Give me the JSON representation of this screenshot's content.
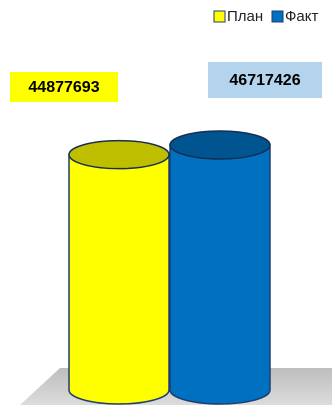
{
  "chart_data": {
    "type": "cylinder",
    "categories": [
      null
    ],
    "series": [
      {
        "name": "План",
        "color": "#ffff00",
        "label_color": "#ffff00",
        "values": [
          44877693
        ]
      },
      {
        "name": "Факт",
        "color": "#0070c0",
        "label_color": "#b4d3ec",
        "values": [
          46717426
        ]
      }
    ],
    "legend": "top-right"
  }
}
